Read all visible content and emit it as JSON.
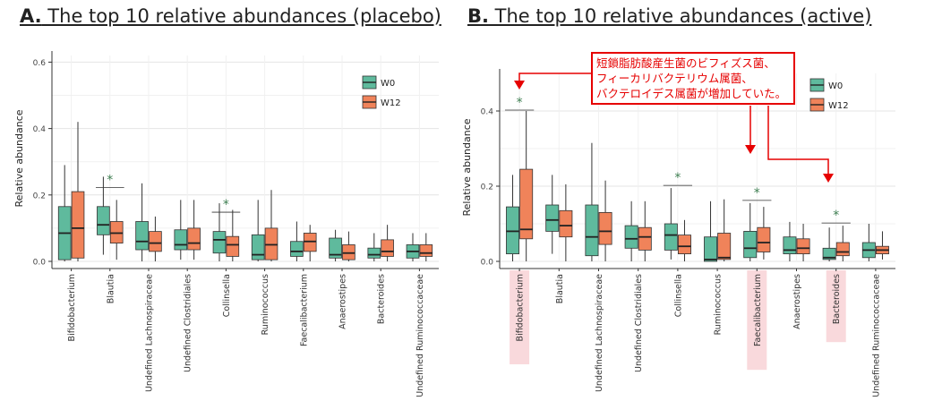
{
  "panels": [
    {
      "title_letter": "A.",
      "title_text": " The top 10 relative abundances (placebo)",
      "ylabel": "Relative abundance",
      "legend": [
        "W0",
        "W12"
      ]
    },
    {
      "title_letter": "B.",
      "title_text": " The top 10 relative abundances (active)",
      "ylabel": "Relative abundance",
      "legend": [
        "W0",
        "W12"
      ]
    }
  ],
  "annotation": {
    "lines": [
      "短鎖脂肪酸産生菌のビフィズス菌、",
      "フィーカリバクテリウム属菌、",
      "バクテロイデス属菌が増加していた。"
    ]
  },
  "colors": {
    "W0": "#5fba9d",
    "W12": "#f0835a",
    "grid": "#e4e4e4",
    "highlight": "#f9d9dc",
    "annotation": "#e60000"
  },
  "chart_data": [
    {
      "type": "box",
      "title": "The top 10 relative abundances (placebo)",
      "xlabel": "",
      "ylabel": "Relative abundance",
      "ylim": [
        0,
        0.62
      ],
      "yticks": [
        0.0,
        0.2,
        0.4,
        0.6
      ],
      "ytick_labels": [
        "0.0",
        "0.2",
        "0.4",
        "0.6"
      ],
      "legend_position": "top-right",
      "categories": [
        "Bifidobacterium",
        "Blautia",
        "Undefined Lachnospiraceae",
        "Undefined Clostridiales",
        "Collinsella",
        "Ruminococcus",
        "Faecalibacterium",
        "Anaerostipes",
        "Bacteroides",
        "Undefined Ruminococcaceae"
      ],
      "significant": [
        "Blautia",
        "Collinsella"
      ],
      "series": [
        {
          "name": "W0",
          "boxes": [
            {
              "whislo": 0.0,
              "q1": 0.005,
              "med": 0.085,
              "q3": 0.165,
              "whishi": 0.29
            },
            {
              "whislo": 0.02,
              "q1": 0.08,
              "med": 0.11,
              "q3": 0.165,
              "whishi": 0.255
            },
            {
              "whislo": 0.0,
              "q1": 0.035,
              "med": 0.06,
              "q3": 0.12,
              "whishi": 0.235
            },
            {
              "whislo": 0.005,
              "q1": 0.035,
              "med": 0.05,
              "q3": 0.095,
              "whishi": 0.185
            },
            {
              "whislo": 0.0,
              "q1": 0.025,
              "med": 0.065,
              "q3": 0.09,
              "whishi": 0.175
            },
            {
              "whislo": 0.0,
              "q1": 0.005,
              "med": 0.02,
              "q3": 0.08,
              "whishi": 0.185
            },
            {
              "whislo": 0.0,
              "q1": 0.015,
              "med": 0.03,
              "q3": 0.06,
              "whishi": 0.12
            },
            {
              "whislo": 0.0,
              "q1": 0.01,
              "med": 0.02,
              "q3": 0.07,
              "whishi": 0.095
            },
            {
              "whislo": 0.0,
              "q1": 0.01,
              "med": 0.02,
              "q3": 0.04,
              "whishi": 0.085
            },
            {
              "whislo": 0.0,
              "q1": 0.01,
              "med": 0.03,
              "q3": 0.05,
              "whishi": 0.085
            }
          ]
        },
        {
          "name": "W12",
          "boxes": [
            {
              "whislo": 0.0,
              "q1": 0.01,
              "med": 0.1,
              "q3": 0.21,
              "whishi": 0.42
            },
            {
              "whislo": 0.005,
              "q1": 0.055,
              "med": 0.085,
              "q3": 0.12,
              "whishi": 0.185
            },
            {
              "whislo": 0.0,
              "q1": 0.03,
              "med": 0.055,
              "q3": 0.09,
              "whishi": 0.135
            },
            {
              "whislo": 0.005,
              "q1": 0.035,
              "med": 0.055,
              "q3": 0.1,
              "whishi": 0.185
            },
            {
              "whislo": 0.0,
              "q1": 0.015,
              "med": 0.05,
              "q3": 0.075,
              "whishi": 0.155
            },
            {
              "whislo": 0.0,
              "q1": 0.005,
              "med": 0.05,
              "q3": 0.1,
              "whishi": 0.215
            },
            {
              "whislo": 0.0,
              "q1": 0.03,
              "med": 0.06,
              "q3": 0.085,
              "whishi": 0.11
            },
            {
              "whislo": 0.0,
              "q1": 0.005,
              "med": 0.025,
              "q3": 0.05,
              "whishi": 0.09
            },
            {
              "whislo": 0.0,
              "q1": 0.015,
              "med": 0.03,
              "q3": 0.065,
              "whishi": 0.11
            },
            {
              "whislo": 0.0,
              "q1": 0.015,
              "med": 0.025,
              "q3": 0.05,
              "whishi": 0.085
            }
          ]
        }
      ]
    },
    {
      "type": "box",
      "title": "The top 10 relative abundances (active)",
      "xlabel": "",
      "ylabel": "Relative abundance",
      "ylim": [
        0,
        0.5
      ],
      "yticks": [
        0.0,
        0.2,
        0.4
      ],
      "ytick_labels": [
        "0.0",
        "0.2",
        "0.4"
      ],
      "legend_position": "top-right",
      "categories": [
        "Bifidobacterium",
        "Blautia",
        "Undefined Lachnospiraceae",
        "Undefined Clostridiales",
        "Collinsella",
        "Ruminococcus",
        "Faecalibacterium",
        "Anaerostipes",
        "Bacteroides",
        "Undefined Ruminococcaceae"
      ],
      "significant": [
        "Bifidobacterium",
        "Collinsella",
        "Faecalibacterium",
        "Bacteroides"
      ],
      "highlighted": [
        "Bifidobacterium",
        "Faecalibacterium",
        "Bacteroides"
      ],
      "series": [
        {
          "name": "W0",
          "boxes": [
            {
              "whislo": 0.0,
              "q1": 0.02,
              "med": 0.08,
              "q3": 0.145,
              "whishi": 0.23
            },
            {
              "whislo": 0.02,
              "q1": 0.08,
              "med": 0.11,
              "q3": 0.15,
              "whishi": 0.23
            },
            {
              "whislo": 0.0,
              "q1": 0.015,
              "med": 0.065,
              "q3": 0.15,
              "whishi": 0.315
            },
            {
              "whislo": 0.0,
              "q1": 0.035,
              "med": 0.06,
              "q3": 0.095,
              "whishi": 0.16
            },
            {
              "whislo": 0.005,
              "q1": 0.03,
              "med": 0.07,
              "q3": 0.1,
              "whishi": 0.195
            },
            {
              "whislo": 0.0,
              "q1": 0.0,
              "med": 0.005,
              "q3": 0.065,
              "whishi": 0.16
            },
            {
              "whislo": 0.0,
              "q1": 0.01,
              "med": 0.035,
              "q3": 0.08,
              "whishi": 0.155
            },
            {
              "whislo": 0.0,
              "q1": 0.02,
              "med": 0.03,
              "q3": 0.065,
              "whishi": 0.105
            },
            {
              "whislo": 0.0,
              "q1": 0.005,
              "med": 0.01,
              "q3": 0.035,
              "whishi": 0.09
            },
            {
              "whislo": 0.0,
              "q1": 0.01,
              "med": 0.03,
              "q3": 0.05,
              "whishi": 0.1
            }
          ]
        },
        {
          "name": "W12",
          "boxes": [
            {
              "whislo": 0.0,
              "q1": 0.06,
              "med": 0.085,
              "q3": 0.245,
              "whishi": 0.4
            },
            {
              "whislo": 0.0,
              "q1": 0.065,
              "med": 0.095,
              "q3": 0.135,
              "whishi": 0.205
            },
            {
              "whislo": 0.0,
              "q1": 0.045,
              "med": 0.08,
              "q3": 0.13,
              "whishi": 0.215
            },
            {
              "whislo": 0.0,
              "q1": 0.03,
              "med": 0.065,
              "q3": 0.09,
              "whishi": 0.16
            },
            {
              "whislo": 0.0,
              "q1": 0.02,
              "med": 0.04,
              "q3": 0.07,
              "whishi": 0.11
            },
            {
              "whislo": 0.0,
              "q1": 0.005,
              "med": 0.01,
              "q3": 0.075,
              "whishi": 0.165
            },
            {
              "whislo": 0.005,
              "q1": 0.025,
              "med": 0.05,
              "q3": 0.09,
              "whishi": 0.145
            },
            {
              "whislo": 0.0,
              "q1": 0.02,
              "med": 0.035,
              "q3": 0.06,
              "whishi": 0.1
            },
            {
              "whislo": 0.0,
              "q1": 0.015,
              "med": 0.025,
              "q3": 0.05,
              "whishi": 0.095
            },
            {
              "whislo": 0.005,
              "q1": 0.02,
              "med": 0.03,
              "q3": 0.04,
              "whishi": 0.08
            }
          ]
        }
      ]
    }
  ]
}
